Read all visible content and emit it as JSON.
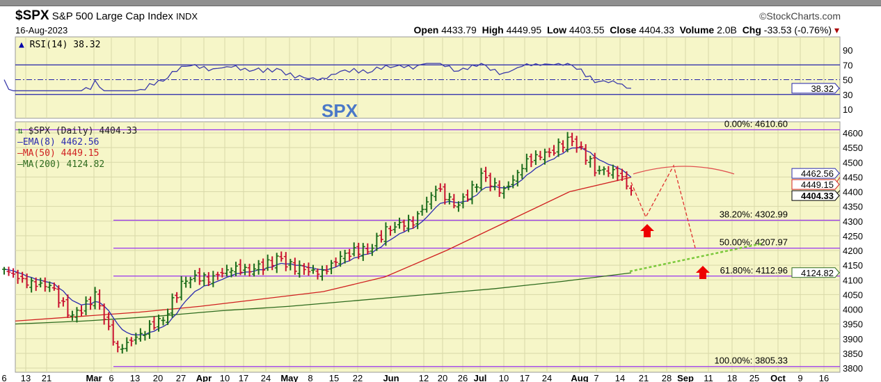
{
  "header": {
    "symbol": "$SPX",
    "name": "S&P 500 Large Cap Index",
    "exchange": "INDX",
    "date": "16-Aug-2023",
    "brand": "©StockCharts.com",
    "open_label": "Open",
    "open": "4433.79",
    "high_label": "High",
    "high": "4449.95",
    "low_label": "Low",
    "low": "4403.55",
    "close_label": "Close",
    "close": "4404.33",
    "volume_label": "Volume",
    "volume": "2.0B",
    "chg_label": "Chg",
    "chg": "-33.53 (-0.76%)"
  },
  "annotation": "SPX",
  "colors": {
    "bg": "#f6f6c8",
    "grid": "#d8d8a8",
    "up": "#1a6b1a",
    "down": "#c8102e",
    "ema": "#2a2ab0",
    "ma50": "#d02020",
    "ma200": "#2e6b1e",
    "fib": "#9933ee",
    "rsi": "#3a3aaa"
  },
  "chart_data": [
    {
      "type": "line",
      "title": "RSI(14) 38.32",
      "legend": "RSI(14) 38.32",
      "ylim": [
        0,
        100
      ],
      "y_ticks": [
        "90",
        "70",
        "50",
        "30",
        "10"
      ],
      "last_value": "38.32"
    },
    {
      "type": "ohlc",
      "title": "$SPX (Daily) 4404.33",
      "legend": [
        "$SPX (Daily) 4404.33",
        "EMA(8) 4462.56",
        "MA(50) 4449.15",
        "MA(200) 4124.82"
      ],
      "ylim": [
        3790,
        4640
      ],
      "y_ticks": [
        "4600",
        "4550",
        "4500",
        "4450",
        "4400",
        "4350",
        "4300",
        "4250",
        "4200",
        "4150",
        "4100",
        "4050",
        "4000",
        "3950",
        "3900",
        "3850",
        "3800"
      ],
      "x_ticks": [
        "6",
        "13",
        "21",
        "Mar",
        "6",
        "13",
        "20",
        "27",
        "Apr",
        "10",
        "17",
        "24",
        "May",
        "8",
        "15",
        "22",
        "Jun",
        "12",
        "20",
        "26",
        "Jul",
        "10",
        "17",
        "24",
        "Aug",
        "7",
        "14",
        "21",
        "28",
        "Sep",
        "11",
        "18",
        "25",
        "Oct",
        "9",
        "16"
      ],
      "weekly_close": [
        [
          "Feb 3",
          4136
        ],
        [
          "Feb 10",
          4090
        ],
        [
          "Feb 17",
          4079
        ],
        [
          "Feb 24",
          3970
        ],
        [
          "Mar 3",
          4045
        ],
        [
          "Mar 10",
          3861
        ],
        [
          "Mar 17",
          3916
        ],
        [
          "Mar 24",
          3970
        ],
        [
          "Mar 31",
          4109
        ],
        [
          "Apr 6",
          4105
        ],
        [
          "Apr 14",
          4137
        ],
        [
          "Apr 21",
          4133
        ],
        [
          "Apr 28",
          4169
        ],
        [
          "May 5",
          4136
        ],
        [
          "May 12",
          4124
        ],
        [
          "May 19",
          4191
        ],
        [
          "May 26",
          4205
        ],
        [
          "Jun 2",
          4282
        ],
        [
          "Jun 9",
          4298
        ],
        [
          "Jun 16",
          4409
        ],
        [
          "Jun 23",
          4348
        ],
        [
          "Jun 30",
          4450
        ],
        [
          "Jul 7",
          4398
        ],
        [
          "Jul 14",
          4505
        ],
        [
          "Jul 21",
          4536
        ],
        [
          "Jul 28",
          4582
        ],
        [
          "Aug 4",
          4478
        ],
        [
          "Aug 11",
          4464
        ],
        [
          "Aug 16",
          4404
        ]
      ],
      "ma50_points": [
        3960,
        3975,
        3990,
        4010,
        4035,
        4060,
        4110,
        4200,
        4300,
        4400,
        4449
      ],
      "ma200_points": [
        3950,
        3960,
        3975,
        3995,
        4010,
        4030,
        4050,
        4070,
        4095,
        4124
      ],
      "price_labels": {
        "ema": "4462.56",
        "ma50": "4449.15",
        "close": "4404.33",
        "ma200": "4124.82"
      },
      "fibonacci": [
        {
          "label": "0.00%: 4610.60",
          "value": 4610.6
        },
        {
          "label": "38.20%: 4302.99",
          "value": 4302.99
        },
        {
          "label": "50.00%: 4207.97",
          "value": 4207.97
        },
        {
          "label": "61.80%: 4112.96",
          "value": 4112.96
        },
        {
          "label": "100.00%: 3805.33",
          "value": 3805.33
        }
      ]
    }
  ]
}
